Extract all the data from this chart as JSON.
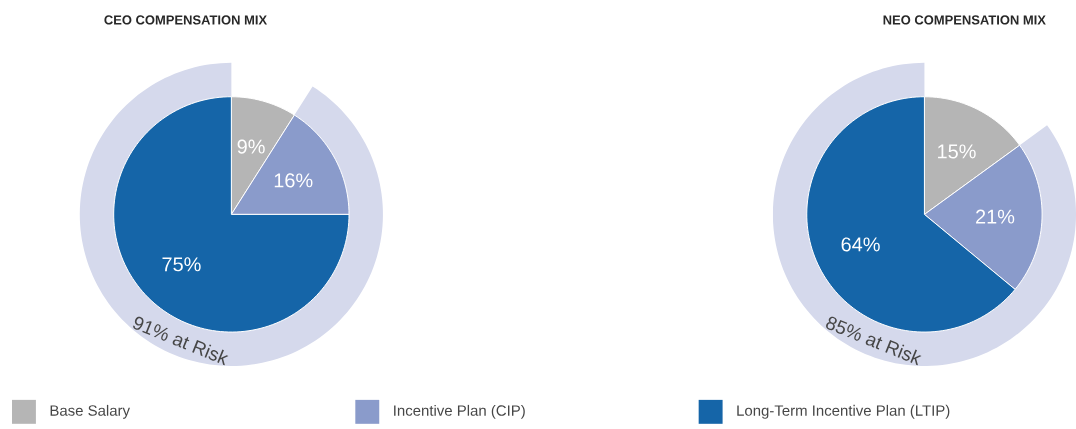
{
  "chart_data": [
    {
      "type": "pie",
      "title": "CEO COMPENSATION MIX",
      "categories": [
        "Base Salary",
        "Incentive Plan (CIP)",
        "Long-Term Incentive Plan (LTIP)"
      ],
      "values": [
        9,
        16,
        75
      ],
      "colors": [
        "#b5b5b5",
        "#8a9bcb",
        "#1565a8"
      ],
      "value_labels": [
        "9%",
        "16%",
        "75%"
      ],
      "annotations": [
        "91% at Risk"
      ],
      "legend": "bottom"
    },
    {
      "type": "pie",
      "title": "NEO COMPENSATION MIX",
      "categories": [
        null,
        null,
        null
      ],
      "values": [
        15,
        21,
        64
      ],
      "colors": [
        "#b5b5b5",
        "#8a9bcb",
        "#1565a8"
      ],
      "value_labels": [
        "15%",
        "21%",
        "64%"
      ],
      "annotations": [
        "85% at Risk"
      ]
    }
  ]
}
